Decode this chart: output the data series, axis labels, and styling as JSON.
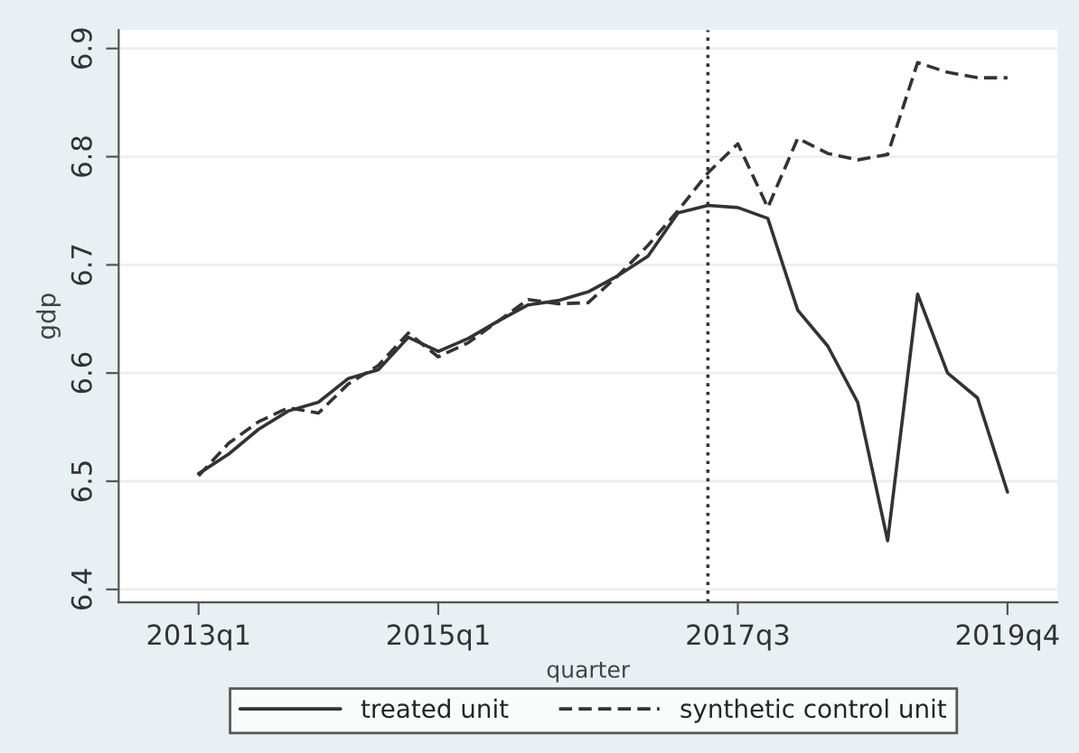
{
  "chart_data": {
    "type": "line",
    "xlabel": "quarter",
    "ylabel": "gdp",
    "x": [
      "2013-01",
      "2013-04",
      "2013-07",
      "2013-10",
      "2014-01",
      "2014-04",
      "2014-07",
      "2014-10",
      "2015-01",
      "2015-04",
      "2015-07",
      "2015-10",
      "2016-01",
      "2016-04",
      "2016-07",
      "2016-10",
      "2017-01",
      "2017-04",
      "2017-07",
      "2017-10",
      "2018-01",
      "2018-04",
      "2018-07",
      "2018-10",
      "2019-01",
      "2019-04",
      "2019-07",
      "2019-10"
    ],
    "xlim": [
      "2012-05",
      "2020-03"
    ],
    "xticks": [
      {
        "value": "2013-01",
        "label": "2013q1"
      },
      {
        "value": "2015-01",
        "label": "2015q1"
      },
      {
        "value": "2017-07",
        "label": "2017q3"
      },
      {
        "value": "2019-10",
        "label": "2019q4"
      }
    ],
    "ylim": [
      6.388,
      6.917
    ],
    "yticks": [
      6.4,
      6.5,
      6.6,
      6.7,
      6.8,
      6.9
    ],
    "grid": "y",
    "legend": "bottom",
    "marker": "none",
    "ref_lines": [
      {
        "axis": "x",
        "value": "2017-04",
        "label": null,
        "color": "#333333",
        "line_style": "dotted"
      }
    ],
    "series": [
      {
        "name": "treated unit",
        "color": "#333333",
        "line_style": "solid",
        "values": [
          6.507,
          6.525,
          6.548,
          6.565,
          6.573,
          6.595,
          6.603,
          6.633,
          6.62,
          6.632,
          6.648,
          6.663,
          6.667,
          6.675,
          6.69,
          6.708,
          6.748,
          6.755,
          6.753,
          6.743,
          6.658,
          6.625,
          6.573,
          6.445,
          6.673,
          6.6,
          6.577,
          6.49
        ]
      },
      {
        "name": "synthetic control unit",
        "color": "#333333",
        "line_style": "dashed",
        "values": [
          6.505,
          6.535,
          6.555,
          6.568,
          6.563,
          6.59,
          6.607,
          6.637,
          6.615,
          6.628,
          6.648,
          6.668,
          6.664,
          6.665,
          6.69,
          6.718,
          6.75,
          6.785,
          6.812,
          6.753,
          6.817,
          6.803,
          6.797,
          6.802,
          6.887,
          6.878,
          6.873,
          6.873
        ]
      }
    ]
  }
}
